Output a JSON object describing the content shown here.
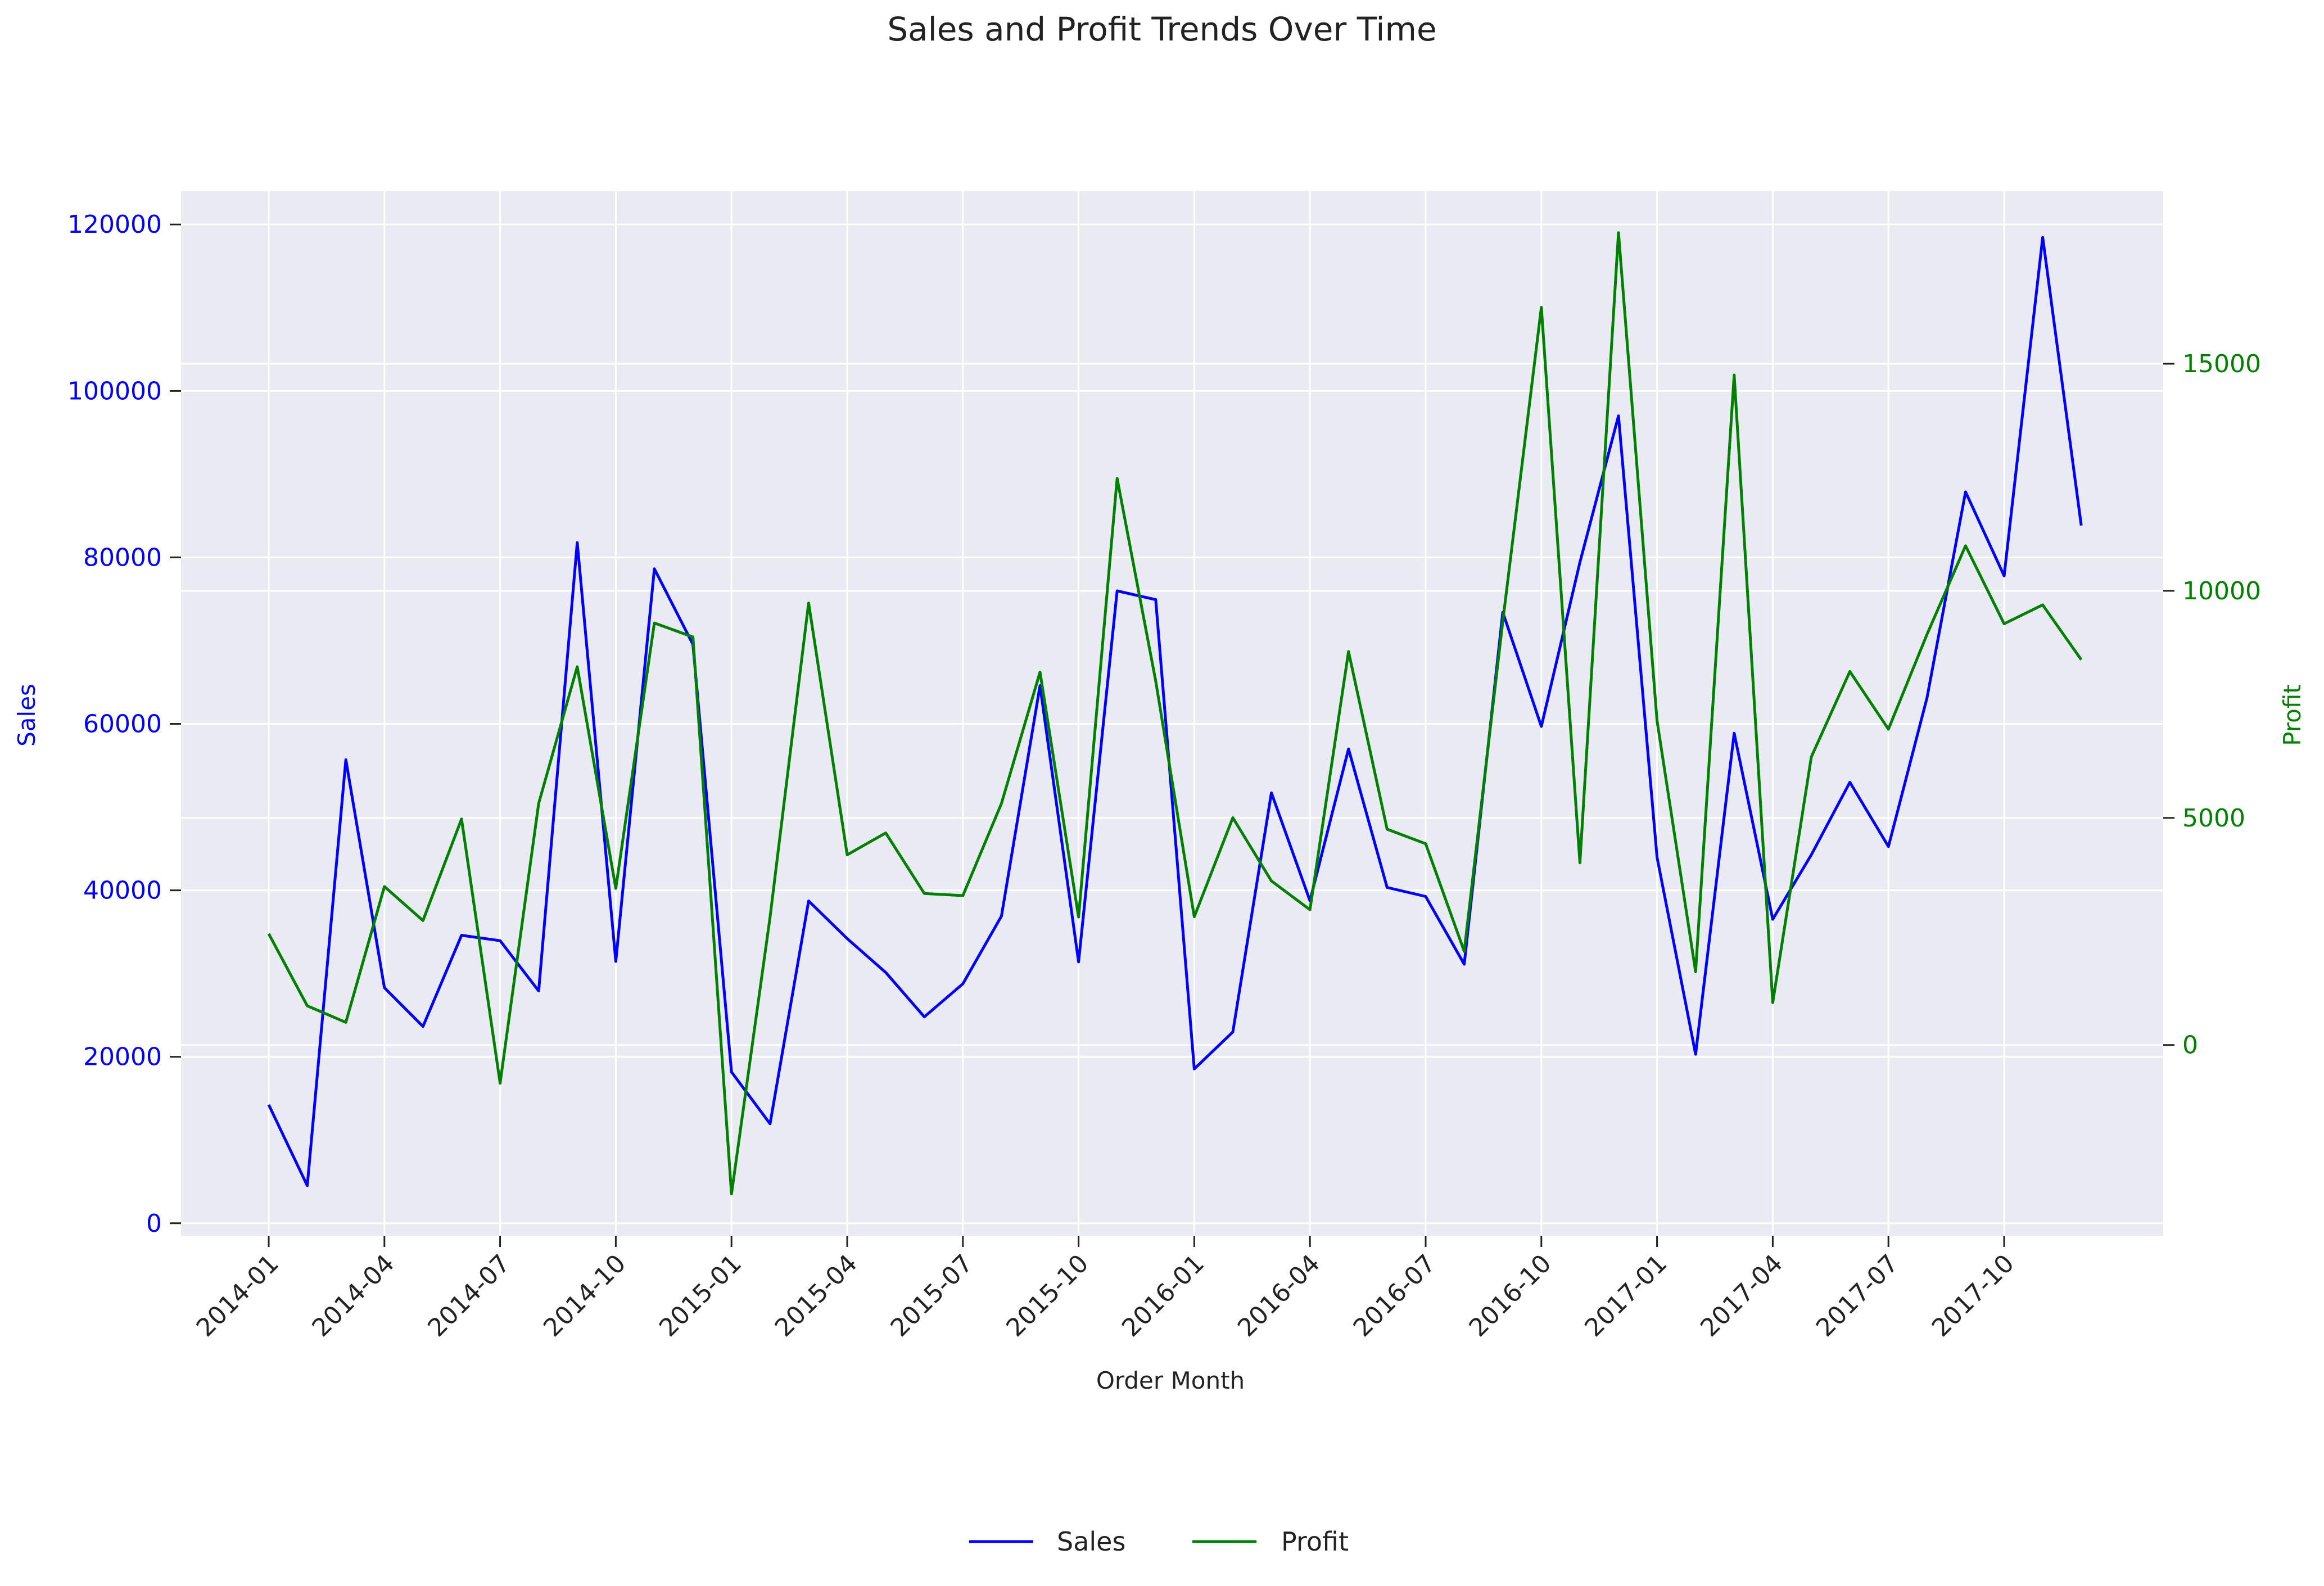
{
  "chart_data": {
    "type": "line",
    "title": "Sales and Profit Trends Over Time",
    "xlabel": "Order Month",
    "ylabel_left": "Sales",
    "ylabel_right": "Profit",
    "x": [
      "2014-01",
      "2014-02",
      "2014-03",
      "2014-04",
      "2014-05",
      "2014-06",
      "2014-07",
      "2014-08",
      "2014-09",
      "2014-10",
      "2014-11",
      "2014-12",
      "2015-01",
      "2015-02",
      "2015-03",
      "2015-04",
      "2015-05",
      "2015-06",
      "2015-07",
      "2015-08",
      "2015-09",
      "2015-10",
      "2015-11",
      "2015-12",
      "2016-01",
      "2016-02",
      "2016-03",
      "2016-04",
      "2016-05",
      "2016-06",
      "2016-07",
      "2016-08",
      "2016-09",
      "2016-10",
      "2016-11",
      "2016-12",
      "2017-01",
      "2017-02",
      "2017-03",
      "2017-04",
      "2017-05",
      "2017-06",
      "2017-07",
      "2017-08",
      "2017-09",
      "2017-10",
      "2017-11",
      "2017-12"
    ],
    "x_ticks": [
      "2014-01",
      "2014-04",
      "2014-07",
      "2014-10",
      "2015-01",
      "2015-04",
      "2015-07",
      "2015-10",
      "2016-01",
      "2016-04",
      "2016-07",
      "2016-10",
      "2017-01",
      "2017-04",
      "2017-07",
      "2017-10"
    ],
    "left_axis": {
      "ylim": [
        -1500,
        124000
      ],
      "ticks": [
        0,
        20000,
        40000,
        60000,
        80000,
        100000,
        120000
      ],
      "color": "#0000ff"
    },
    "right_axis": {
      "ylim": [
        -4200,
        18800
      ],
      "ticks": [
        0,
        5000,
        10000,
        15000
      ],
      "color": "#008000"
    },
    "series": [
      {
        "name": "Sales",
        "axis": "left",
        "color": "#0000ff",
        "values": [
          14237,
          4520,
          55691,
          28295,
          23648,
          34595,
          33946,
          27909,
          81777,
          31453,
          78629,
          69546,
          18174,
          11951,
          38726,
          34195,
          30132,
          24797,
          28765,
          36898,
          64596,
          31404,
          75973,
          74919,
          18542,
          22978,
          51715,
          38750,
          56988,
          40344,
          39262,
          31115,
          73410,
          59688,
          79412,
          96999,
          43971,
          20301,
          58872,
          36522,
          44261,
          52982,
          45264,
          63121,
          87867,
          77777,
          118448,
          83829
        ]
      },
      {
        "name": "Profit",
        "axis": "right",
        "color": "#008000",
        "values": [
          2450,
          862,
          499,
          3489,
          2739,
          4977,
          -841,
          5318,
          8329,
          3448,
          9292,
          8984,
          -3281,
          2814,
          9732,
          4188,
          4668,
          3336,
          3289,
          5317,
          8210,
          2818,
          12474,
          8016,
          2824,
          5004,
          3612,
          2979,
          8663,
          4751,
          4432,
          2063,
          9328,
          16243,
          4011,
          17885,
          7140,
          1613,
          14752,
          934,
          6342,
          8223,
          6953,
          9041,
          10991,
          9275,
          9690,
          8483
        ]
      }
    ],
    "grid": true,
    "legend": "bottom-center"
  }
}
